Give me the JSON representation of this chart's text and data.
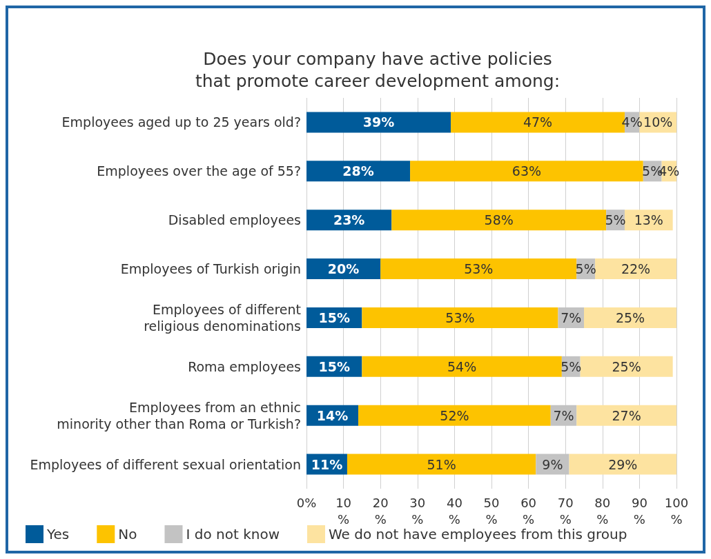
{
  "chart_data": {
    "type": "bar",
    "orientation": "horizontal",
    "stacked": true,
    "title": "Does your company have active policies\nthat promote career development among:",
    "categories": [
      "Employees aged up to 25 years old?",
      "Employees over the age of 55?",
      "Disabled employees",
      "Employees of Turkish origin",
      "Employees of different\nreligious denominations",
      "Roma employees",
      "Employees from an ethnic\nminority other than Roma or Turkish?",
      "Employees of different sexual orientation"
    ],
    "series": [
      {
        "name": "Yes",
        "color": "#005b9a",
        "values": [
          39,
          28,
          23,
          20,
          15,
          15,
          14,
          11
        ],
        "value_labels": [
          "39%",
          "28%",
          "23%",
          "20%",
          "15%",
          "15%",
          "14%",
          "11%"
        ]
      },
      {
        "name": "No",
        "color": "#fdc300",
        "values": [
          47,
          63,
          58,
          53,
          53,
          54,
          52,
          51
        ],
        "value_labels": [
          "47%",
          "63%",
          "58%",
          "53%",
          "53%",
          "54%",
          "52%",
          "51%"
        ]
      },
      {
        "name": "I do not know",
        "color": "#c3c3c3",
        "values": [
          4,
          5,
          5,
          5,
          7,
          5,
          7,
          9
        ],
        "value_labels": [
          "4%",
          "5%",
          "5%",
          "5%",
          "7%",
          "5%",
          "7%",
          "9%"
        ]
      },
      {
        "name": "We do not have employees from this group",
        "color": "#fde3a0",
        "values": [
          10,
          4,
          13,
          22,
          25,
          25,
          27,
          29
        ],
        "value_labels": [
          "10%",
          "4%",
          "13%",
          "22%",
          "25%",
          "25%",
          "27%",
          "29%"
        ]
      }
    ],
    "xlim": [
      0,
      100
    ],
    "xticks": [
      {
        "value": 0,
        "label": "0%"
      },
      {
        "value": 10,
        "label": "10%"
      },
      {
        "value": 20,
        "label": "20%"
      },
      {
        "value": 30,
        "label": "30%"
      },
      {
        "value": 40,
        "label": "40%"
      },
      {
        "value": 50,
        "label": "50%"
      },
      {
        "value": 60,
        "label": "60%"
      },
      {
        "value": 70,
        "label": "70%"
      },
      {
        "value": 80,
        "label": "80%"
      },
      {
        "value": 90,
        "label": "90%"
      },
      {
        "value": 100,
        "label": "100%"
      }
    ],
    "grid": "x",
    "legend": "bottom"
  }
}
